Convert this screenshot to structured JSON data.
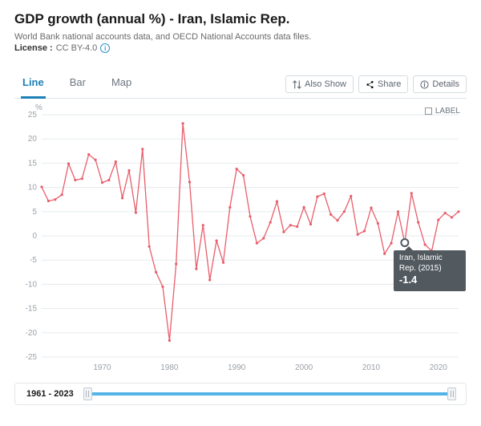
{
  "header": {
    "title": "GDP growth (annual %) - Iran, Islamic Rep.",
    "subtitle": "World Bank national accounts data, and OECD National Accounts data files.",
    "license_label": "License",
    "license_value": "CC BY-4.0"
  },
  "tabs": {
    "line": "Line",
    "bar": "Bar",
    "map": "Map",
    "active": "line"
  },
  "actions": {
    "also_show": "Also Show",
    "share": "Share",
    "details": "Details"
  },
  "chart": {
    "type": "line",
    "y_unit": "%",
    "legend_label": "LABEL",
    "series_color": "#e85e6b",
    "grid_color": "#e6eaee",
    "axis_color": "#b9c1c8",
    "tick_font_color": "#9aa1a8",
    "tick_font_size": 10,
    "background": "#ffffff",
    "xlim": [
      1961,
      2023
    ],
    "ylim": [
      -25,
      25
    ],
    "ytick_step": 5,
    "xtick_step": 10,
    "xtick_start": 1970,
    "line_width": 1.3,
    "marker_size": 1.6,
    "years": [
      1961,
      1962,
      1963,
      1964,
      1965,
      1966,
      1967,
      1968,
      1969,
      1970,
      1971,
      1972,
      1973,
      1974,
      1975,
      1976,
      1977,
      1978,
      1979,
      1980,
      1981,
      1982,
      1983,
      1984,
      1985,
      1986,
      1987,
      1988,
      1989,
      1990,
      1991,
      1992,
      1993,
      1994,
      1995,
      1996,
      1997,
      1998,
      1999,
      2000,
      2001,
      2002,
      2003,
      2004,
      2005,
      2006,
      2007,
      2008,
      2009,
      2010,
      2011,
      2012,
      2013,
      2014,
      2015,
      2016,
      2017,
      2018,
      2019,
      2020,
      2021,
      2022,
      2023
    ],
    "values": [
      10.1,
      7.2,
      7.5,
      8.5,
      14.9,
      11.5,
      11.8,
      16.8,
      15.7,
      11.0,
      11.5,
      15.3,
      7.8,
      13.5,
      4.8,
      17.9,
      -2.2,
      -7.5,
      -10.5,
      -21.6,
      -5.8,
      23.2,
      11.1,
      -6.8,
      2.2,
      -9.1,
      -1.0,
      -5.5,
      5.9,
      13.8,
      12.5,
      4.0,
      -1.5,
      -0.5,
      2.8,
      7.1,
      0.8,
      2.2,
      1.9,
      5.9,
      2.4,
      8.1,
      8.7,
      4.4,
      3.2,
      5.0,
      8.2,
      0.3,
      1.0,
      5.8,
      2.6,
      -3.7,
      -1.5,
      5.0,
      -1.4,
      8.8,
      2.8,
      -1.8,
      -3.1,
      3.3,
      4.7,
      3.8,
      5.0
    ]
  },
  "tooltip": {
    "label": "Iran, Islamic Rep. (2015)",
    "value": "-1.4",
    "year": 2015
  },
  "range": {
    "label": "1961 - 2023",
    "min": 1961,
    "max": 2023
  }
}
